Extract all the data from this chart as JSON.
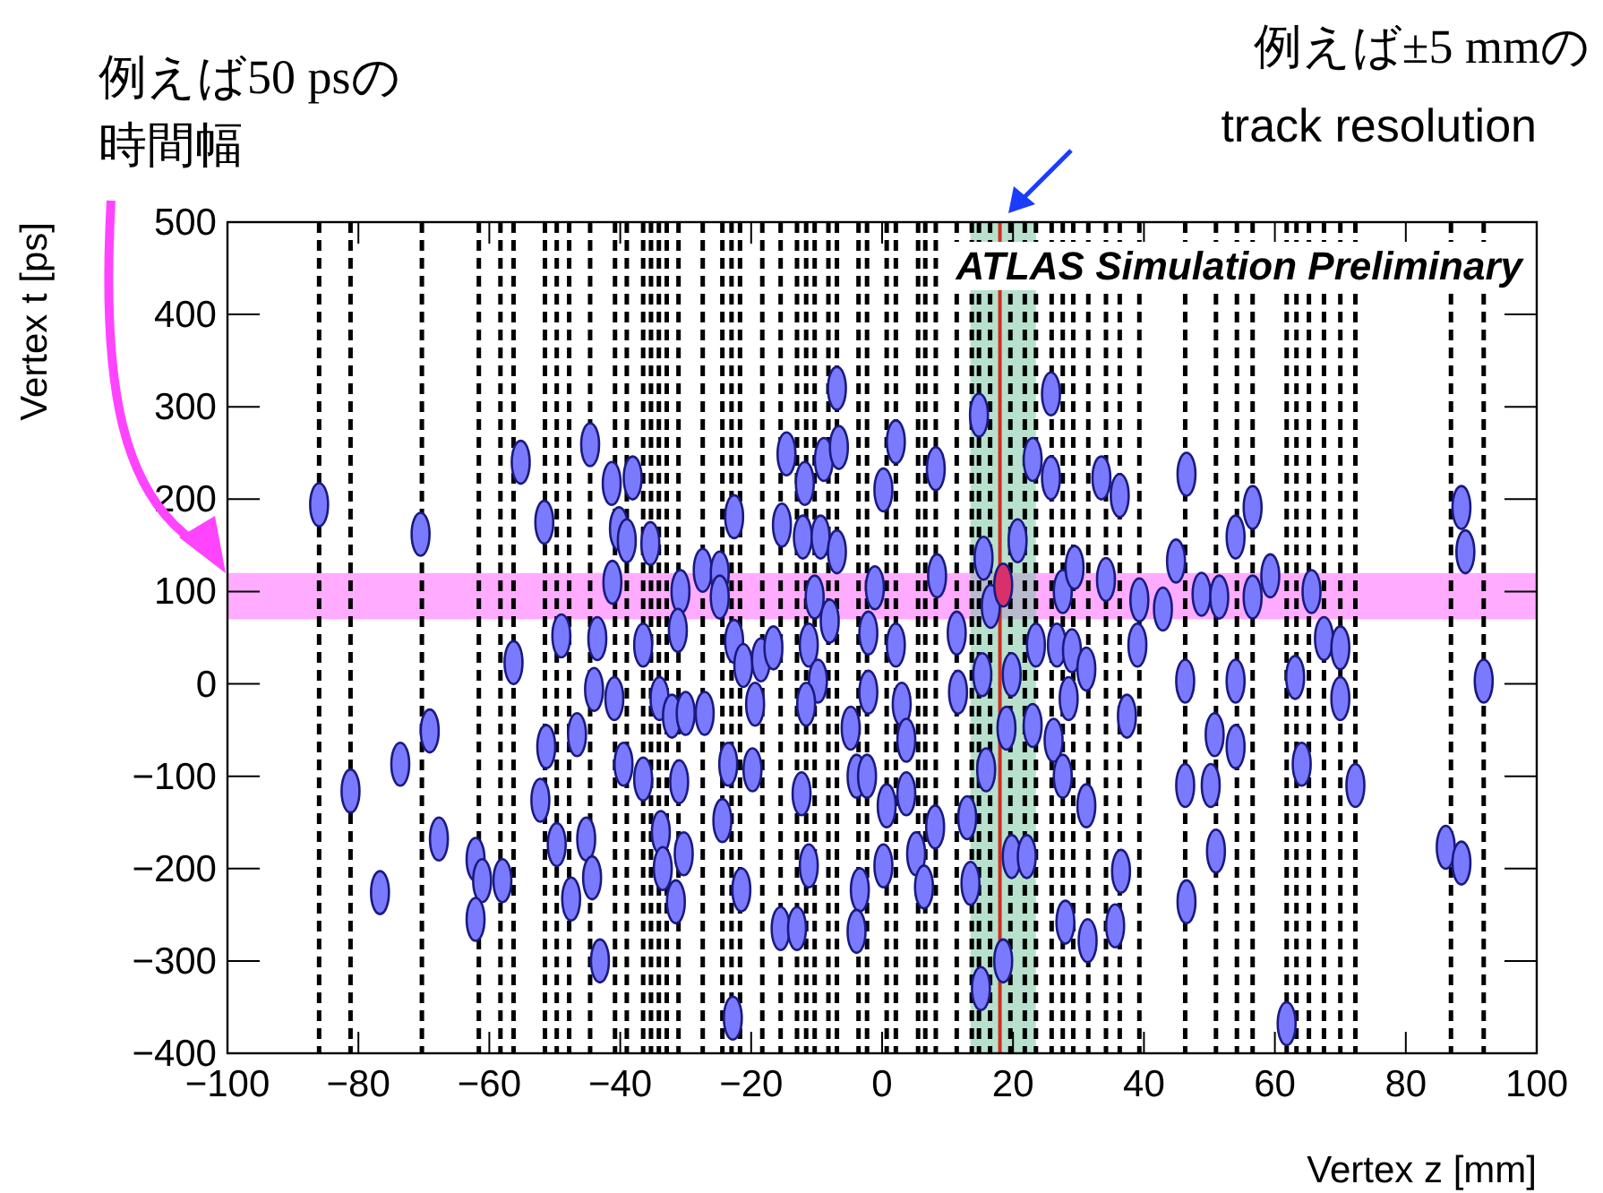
{
  "chart_data": {
    "type": "scatter",
    "xlabel": "Vertex z [mm]",
    "ylabel": "Vertex t [ps]",
    "xlim": [
      -100,
      100
    ],
    "xticks": [
      -100,
      -80,
      -60,
      -40,
      -20,
      0,
      20,
      40,
      60,
      80,
      100
    ],
    "ylim": [
      -400,
      500
    ],
    "yticks": [
      -400,
      -300,
      -200,
      -100,
      0,
      100,
      200,
      300,
      400,
      500
    ],
    "annotations": [
      "例えば50 psの",
      "時間幅",
      "例えば±5 mmの",
      "track resolution",
      "ATLAS Simulation Preliminary"
    ],
    "bands": [
      {
        "axis": "y",
        "from": 70,
        "to": 120,
        "color": "#ff66ff"
      },
      {
        "axis": "x",
        "from": 13.5,
        "to": 23.5,
        "color": "#7ec8a4"
      }
    ],
    "ref_lines": [
      {
        "axis": "x",
        "value": -86.0,
        "line_style": "dashed",
        "color": "#000000"
      },
      {
        "axis": "x",
        "value": -81.2,
        "line_style": "dashed",
        "color": "#000000"
      },
      {
        "axis": "x",
        "value": -70.3,
        "line_style": "dashed",
        "color": "#000000"
      },
      {
        "axis": "x",
        "value": -61.6,
        "line_style": "dashed",
        "color": "#000000"
      },
      {
        "axis": "x",
        "value": -58.3,
        "line_style": "dashed",
        "color": "#000000"
      },
      {
        "axis": "x",
        "value": -56.3,
        "line_style": "dashed",
        "color": "#000000"
      },
      {
        "axis": "x",
        "value": -51.5,
        "line_style": "dashed",
        "color": "#000000"
      },
      {
        "axis": "x",
        "value": -49.7,
        "line_style": "dashed",
        "color": "#000000"
      },
      {
        "axis": "x",
        "value": -47.8,
        "line_style": "dashed",
        "color": "#000000"
      },
      {
        "axis": "x",
        "value": -44.6,
        "line_style": "dashed",
        "color": "#000000"
      },
      {
        "axis": "x",
        "value": -40.8,
        "line_style": "dashed",
        "color": "#000000"
      },
      {
        "axis": "x",
        "value": -39.0,
        "line_style": "dashed",
        "color": "#000000"
      },
      {
        "axis": "x",
        "value": -36.5,
        "line_style": "dashed",
        "color": "#000000"
      },
      {
        "axis": "x",
        "value": -35.3,
        "line_style": "dashed",
        "color": "#000000"
      },
      {
        "axis": "x",
        "value": -34.1,
        "line_style": "dashed",
        "color": "#000000"
      },
      {
        "axis": "x",
        "value": -32.9,
        "line_style": "dashed",
        "color": "#000000"
      },
      {
        "axis": "x",
        "value": -31.1,
        "line_style": "dashed",
        "color": "#000000"
      },
      {
        "axis": "x",
        "value": -27.4,
        "line_style": "dashed",
        "color": "#000000"
      },
      {
        "axis": "x",
        "value": -24.4,
        "line_style": "dashed",
        "color": "#000000"
      },
      {
        "axis": "x",
        "value": -23.0,
        "line_style": "dashed",
        "color": "#000000"
      },
      {
        "axis": "x",
        "value": -21.7,
        "line_style": "dashed",
        "color": "#000000"
      },
      {
        "axis": "x",
        "value": -18.3,
        "line_style": "dashed",
        "color": "#000000"
      },
      {
        "axis": "x",
        "value": -15.5,
        "line_style": "dashed",
        "color": "#000000"
      },
      {
        "axis": "x",
        "value": -13.0,
        "line_style": "dashed",
        "color": "#000000"
      },
      {
        "axis": "x",
        "value": -11.6,
        "line_style": "dashed",
        "color": "#000000"
      },
      {
        "axis": "x",
        "value": -10.3,
        "line_style": "dashed",
        "color": "#000000"
      },
      {
        "axis": "x",
        "value": -8.2,
        "line_style": "dashed",
        "color": "#000000"
      },
      {
        "axis": "x",
        "value": -6.9,
        "line_style": "dashed",
        "color": "#000000"
      },
      {
        "axis": "x",
        "value": -3.6,
        "line_style": "dashed",
        "color": "#000000"
      },
      {
        "axis": "x",
        "value": -2.3,
        "line_style": "dashed",
        "color": "#000000"
      },
      {
        "axis": "x",
        "value": 0.7,
        "line_style": "dashed",
        "color": "#000000"
      },
      {
        "axis": "x",
        "value": 2.1,
        "line_style": "dashed",
        "color": "#000000"
      },
      {
        "axis": "x",
        "value": 5.5,
        "line_style": "dashed",
        "color": "#000000"
      },
      {
        "axis": "x",
        "value": 6.6,
        "line_style": "dashed",
        "color": "#000000"
      },
      {
        "axis": "x",
        "value": 8.2,
        "line_style": "dashed",
        "color": "#000000"
      },
      {
        "axis": "x",
        "value": 11.4,
        "line_style": "dashed",
        "color": "#000000"
      },
      {
        "axis": "x",
        "value": 13.7,
        "line_style": "dashed",
        "color": "#000000"
      },
      {
        "axis": "x",
        "value": 14.8,
        "line_style": "dashed",
        "color": "#000000"
      },
      {
        "axis": "x",
        "value": 16.5,
        "line_style": "dashed",
        "color": "#000000"
      },
      {
        "axis": "x",
        "value": 19.6,
        "line_style": "dashed",
        "color": "#000000"
      },
      {
        "axis": "x",
        "value": 21.8,
        "line_style": "dashed",
        "color": "#000000"
      },
      {
        "axis": "x",
        "value": 23.5,
        "line_style": "dashed",
        "color": "#000000"
      },
      {
        "axis": "x",
        "value": 25.9,
        "line_style": "dashed",
        "color": "#000000"
      },
      {
        "axis": "x",
        "value": 27.6,
        "line_style": "dashed",
        "color": "#000000"
      },
      {
        "axis": "x",
        "value": 29.2,
        "line_style": "dashed",
        "color": "#000000"
      },
      {
        "axis": "x",
        "value": 31.5,
        "line_style": "dashed",
        "color": "#000000"
      },
      {
        "axis": "x",
        "value": 34.2,
        "line_style": "dashed",
        "color": "#000000"
      },
      {
        "axis": "x",
        "value": 36.3,
        "line_style": "dashed",
        "color": "#000000"
      },
      {
        "axis": "x",
        "value": 39.3,
        "line_style": "dashed",
        "color": "#000000"
      },
      {
        "axis": "x",
        "value": 46.3,
        "line_style": "dashed",
        "color": "#000000"
      },
      {
        "axis": "x",
        "value": 51.0,
        "line_style": "dashed",
        "color": "#000000"
      },
      {
        "axis": "x",
        "value": 54.2,
        "line_style": "dashed",
        "color": "#000000"
      },
      {
        "axis": "x",
        "value": 56.6,
        "line_style": "dashed",
        "color": "#000000"
      },
      {
        "axis": "x",
        "value": 61.8,
        "line_style": "dashed",
        "color": "#000000"
      },
      {
        "axis": "x",
        "value": 63.3,
        "line_style": "dashed",
        "color": "#000000"
      },
      {
        "axis": "x",
        "value": 65.2,
        "line_style": "dashed",
        "color": "#000000"
      },
      {
        "axis": "x",
        "value": 67.5,
        "line_style": "dashed",
        "color": "#000000"
      },
      {
        "axis": "x",
        "value": 70.0,
        "line_style": "dashed",
        "color": "#000000"
      },
      {
        "axis": "x",
        "value": 72.3,
        "line_style": "dashed",
        "color": "#000000"
      },
      {
        "axis": "x",
        "value": 86.9,
        "line_style": "dashed",
        "color": "#000000"
      },
      {
        "axis": "x",
        "value": 91.9,
        "line_style": "dashed",
        "color": "#000000"
      },
      {
        "axis": "x",
        "value": 18,
        "line_style": "solid",
        "color": "#d03020"
      }
    ],
    "series": [
      {
        "color": "#7a7aff",
        "x": [
          -86.0,
          -70.5,
          -81.2,
          -73.6,
          -69.1,
          -67.7,
          -76.7,
          -62.1,
          -61.1,
          -62.1,
          -58.0,
          -56.3,
          -55.2,
          -51.6,
          -49.0,
          -51.3,
          -52.2,
          -49.7,
          -47.5,
          -44.6,
          -43.5,
          -44.0,
          -46.6,
          -45.2,
          -44.3,
          -43.1,
          -41.3,
          -38.1,
          -40.2,
          -39.0,
          -35.4,
          -41.2,
          -40.9,
          -36.5,
          -39.5,
          -36.5,
          -34.0,
          -33.8,
          -33.5,
          -30.8,
          -31.2,
          -32.1,
          -30.0,
          -27.1,
          -31.0,
          -30.3,
          -31.5,
          -27.4,
          -24.8,
          -24.8,
          -22.6,
          -22.6,
          -21.2,
          -18.5,
          -16.6,
          -19.4,
          -23.5,
          -19.8,
          -24.4,
          -21.5,
          -15.5,
          -13.0,
          -22.8,
          -14.6,
          -15.3,
          -11.8,
          -12.1,
          -8.9,
          -6.6,
          -6.9,
          -9.4,
          -6.9,
          -10.3,
          -11.2,
          -9.8,
          -11.6,
          -12.3,
          -11.2,
          -8.0,
          -1.1,
          0.2,
          2.1,
          -2.1,
          -2.1,
          -4.8,
          -3.9,
          -2.3,
          0.7,
          0.2,
          -3.4,
          -3.9,
          2.1,
          3.0,
          3.7,
          3.7,
          5.2,
          6.4,
          8.1,
          8.2,
          8.4,
          11.4,
          11.6,
          13.0,
          13.5,
          14.8,
          15.5,
          16.6,
          15.3,
          15.9,
          15.1,
          18.5,
          19.0,
          19.8,
          22.1,
          19.8,
          20.7,
          23.0,
          23.5,
          23.0,
          25.8,
          25.8,
          27.6,
          29.4,
          26.7,
          29.0,
          26.2,
          28.5,
          27.6,
          31.2,
          28.0,
          31.2,
          33.5,
          36.3,
          34.2,
          39.3,
          39.0,
          37.4,
          36.5,
          35.6,
          31.4,
          42.9,
          44.9,
          46.5,
          48.8,
          51.5,
          46.3,
          46.3,
          46.5,
          50.8,
          50.2,
          51.0,
          54.0,
          56.6,
          54.0,
          54.0,
          56.6,
          59.3,
          65.6,
          67.5,
          70.0,
          70.0,
          63.1,
          64.1,
          72.3,
          61.8,
          88.5,
          89.1,
          91.9,
          86.1,
          88.5
        ],
        "values": [
          194,
          162,
          -116,
          -87,
          -51,
          -168,
          -226,
          -190,
          -213,
          -255,
          -213,
          23,
          240,
          175,
          52,
          -68,
          -126,
          -174,
          -233,
          259,
          49,
          -6,
          -55,
          -168,
          -210,
          -300,
          217,
          223,
          168,
          155,
          152,
          110,
          -16,
          42,
          -87,
          -103,
          -16,
          -161,
          -200,
          100,
          58,
          -35,
          -32,
          -32,
          -106,
          -184,
          -236,
          123,
          120,
          94,
          181,
          46,
          20,
          26,
          39,
          -22,
          -87,
          -93,
          -148,
          -223,
          -265,
          -265,
          -362,
          249,
          172,
          217,
          159,
          243,
          256,
          320,
          159,
          143,
          94,
          42,
          3,
          -22,
          -119,
          -197,
          68,
          104,
          210,
          262,
          55,
          -9,
          -48,
          -100,
          -100,
          -132,
          -197,
          -223,
          -268,
          42,
          -22,
          -61,
          -119,
          -184,
          -220,
          -155,
          233,
          117,
          55,
          -9,
          -145,
          -216,
          291,
          136,
          84,
          10,
          -93,
          -330,
          -300,
          -48,
          -187,
          -187,
          10,
          155,
          243,
          42,
          -45,
          314,
          223,
          100,
          126,
          42,
          36,
          -61,
          -16,
          -100,
          -132,
          -258,
          16,
          223,
          204,
          113,
          91,
          42,
          -35,
          -203,
          -262,
          -278,
          81,
          133,
          227,
          97,
          94,
          3,
          -110,
          -236,
          -55,
          -110,
          -181,
          159,
          191,
          3,
          -68,
          94,
          117,
          100,
          49,
          39,
          -16,
          7,
          -87,
          -110,
          -368,
          191,
          143,
          3,
          -177,
          -194
        ]
      },
      {
        "color": "#d8306a",
        "x": [
          18.5
        ],
        "values": [
          107
        ]
      }
    ]
  }
}
